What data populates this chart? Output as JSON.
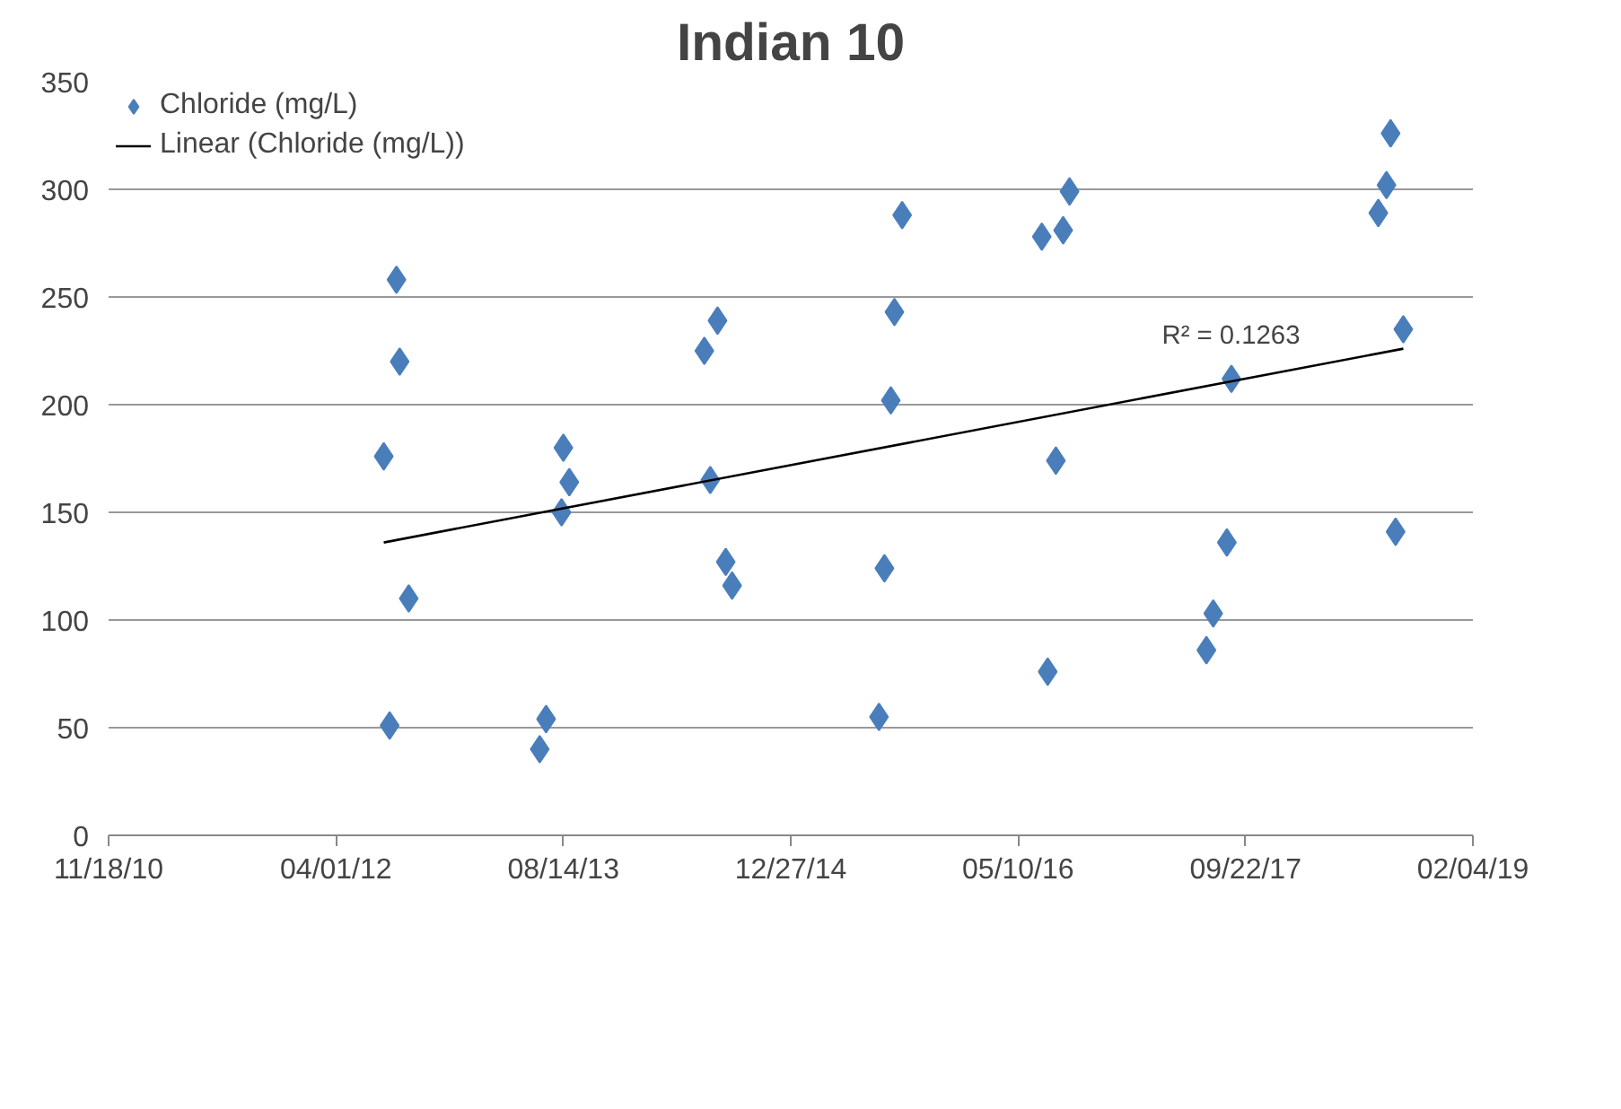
{
  "chart_data": {
    "type": "scatter",
    "title": "Indian 10",
    "x": [
      "2012-08-12",
      "2012-08-19",
      "2012-07-15",
      "2012-09-08",
      "2012-07-28",
      "2013-08-14",
      "2013-08-27",
      "2013-08-10",
      "2013-07-07",
      "2013-06-23",
      "2014-07-19",
      "2014-06-20",
      "2014-07-03",
      "2014-08-06",
      "2014-08-20",
      "2015-08-29",
      "2015-08-12",
      "2015-08-04",
      "2015-07-21",
      "2015-07-09",
      "2016-08-31",
      "2016-07-01",
      "2016-08-17",
      "2016-08-01",
      "2016-07-14",
      "2017-08-22",
      "2017-08-12",
      "2017-07-13",
      "2017-06-28",
      "2018-08-07",
      "2018-07-29",
      "2018-07-11",
      "2018-09-04",
      "2018-08-18"
    ],
    "series": [
      {
        "name": "Chloride (mg/L)",
        "color": "#4a7ebb",
        "marker": "diamond",
        "values": [
          258,
          220,
          176,
          110,
          51,
          180,
          164,
          150,
          54,
          40,
          239,
          225,
          165,
          127,
          116,
          288,
          243,
          202,
          124,
          55,
          299,
          278,
          281,
          174,
          76,
          212,
          136,
          103,
          86,
          326,
          302,
          289,
          235,
          141
        ]
      },
      {
        "name": "Linear (Chloride (mg/L))",
        "color": "#000000",
        "type": "line",
        "line_style": "solid",
        "x": [
          "2012-07-15",
          "2018-09-04"
        ],
        "values": [
          136,
          226
        ]
      }
    ],
    "annotations": [
      {
        "text": "R² = 0.1263",
        "x": "2018-01-20",
        "y": 220
      }
    ],
    "xlim": [
      "2010-11-18",
      "2019-02-04"
    ],
    "xticks": [
      {
        "value": "2010-11-18",
        "label": "11/18/10"
      },
      {
        "value": "2012-04-01",
        "label": "04/01/12"
      },
      {
        "value": "2013-08-14",
        "label": "08/14/13"
      },
      {
        "value": "2014-12-27",
        "label": "12/27/14"
      },
      {
        "value": "2016-05-10",
        "label": "05/10/16"
      },
      {
        "value": "2017-09-22",
        "label": "09/22/17"
      },
      {
        "value": "2019-02-04",
        "label": "02/04/19"
      }
    ],
    "ylim": [
      0,
      350
    ],
    "yticks": [
      0,
      50,
      100,
      150,
      200,
      250,
      300,
      350
    ],
    "grid": "y",
    "legend": "top left"
  }
}
